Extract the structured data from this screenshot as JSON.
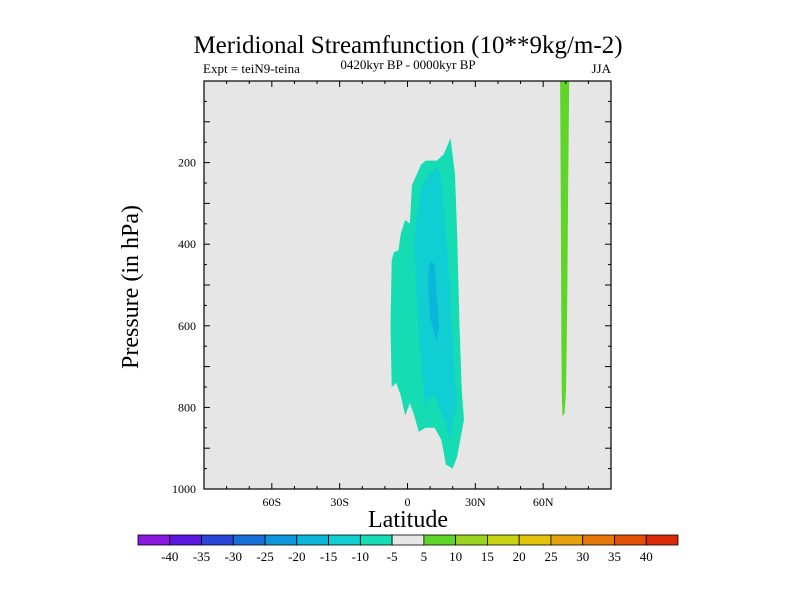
{
  "chart_data": {
    "type": "contour",
    "title": "Meridional Streamfunction (10**9kg/m-2)",
    "left_label": "Expt = teiN9-teina",
    "center_label": "0420kyr BP - 0000kyr BP",
    "right_label": "JJA",
    "xlabel": "Latitude",
    "ylabel": "Pressure (in hPa)",
    "xlim": [
      -90,
      90
    ],
    "ylim": [
      0,
      1000
    ],
    "x_ticks": [
      {
        "value": -60,
        "label": "60S"
      },
      {
        "value": -30,
        "label": "30S"
      },
      {
        "value": 0,
        "label": "0"
      },
      {
        "value": 30,
        "label": "30N"
      },
      {
        "value": 60,
        "label": "60N"
      }
    ],
    "y_ticks": [
      {
        "value": 200,
        "label": "200"
      },
      {
        "value": 400,
        "label": "400"
      },
      {
        "value": 600,
        "label": "600"
      },
      {
        "value": 800,
        "label": "800"
      },
      {
        "value": 1000,
        "label": "1000"
      }
    ],
    "x_minor_step": 10,
    "y_minor_step": 50,
    "background_color": "#e6e6e6",
    "colorbar": {
      "levels": [
        "-40",
        "-35",
        "-30",
        "-25",
        "-20",
        "-15",
        "-10",
        "-5",
        "5",
        "10",
        "15",
        "20",
        "25",
        "30",
        "35",
        "40"
      ],
      "colors": [
        "#8a18e0",
        "#5b16e0",
        "#2a45d8",
        "#1770d8",
        "#0c96dc",
        "#0ab6da",
        "#10ced2",
        "#16dcb4",
        "#e6e6e6",
        "#5fd52a",
        "#9ad41e",
        "#c8d412",
        "#e2c40a",
        "#e6a20a",
        "#e67808",
        "#e25006",
        "#dc2a06"
      ]
    },
    "regions": [
      {
        "name": "minus-5-to-minus-10",
        "color": "#16dcb4",
        "points": [
          [
            -7,
            440
          ],
          [
            -6,
            420
          ],
          [
            -4,
            415
          ],
          [
            -3,
            375
          ],
          [
            -1,
            340
          ],
          [
            1,
            350
          ],
          [
            2,
            255
          ],
          [
            6,
            205
          ],
          [
            8,
            195
          ],
          [
            13,
            195
          ],
          [
            16,
            180
          ],
          [
            19,
            140
          ],
          [
            21,
            230
          ],
          [
            22,
            380
          ],
          [
            23,
            600
          ],
          [
            24,
            760
          ],
          [
            25,
            830
          ],
          [
            22,
            920
          ],
          [
            20,
            950
          ],
          [
            17,
            940
          ],
          [
            15,
            880
          ],
          [
            12,
            850
          ],
          [
            8,
            850
          ],
          [
            5,
            860
          ],
          [
            3,
            820
          ],
          [
            1,
            790
          ],
          [
            -1,
            820
          ],
          [
            -3,
            770
          ],
          [
            -5,
            740
          ],
          [
            -7,
            750
          ],
          [
            -7.5,
            600
          ]
        ]
      },
      {
        "name": "minus-10-to-minus-15",
        "color": "#10ced2",
        "points": [
          [
            3,
            400
          ],
          [
            4,
            330
          ],
          [
            6,
            260
          ],
          [
            9,
            230
          ],
          [
            11,
            225
          ],
          [
            13,
            210
          ],
          [
            15,
            235
          ],
          [
            17,
            370
          ],
          [
            19,
            520
          ],
          [
            20,
            640
          ],
          [
            21,
            730
          ],
          [
            22,
            790
          ],
          [
            20,
            840
          ],
          [
            19,
            880
          ],
          [
            17,
            840
          ],
          [
            14,
            800
          ],
          [
            12,
            770
          ],
          [
            9,
            780
          ],
          [
            8,
            800
          ],
          [
            6,
            700
          ],
          [
            5,
            620
          ],
          [
            4,
            520
          ]
        ]
      },
      {
        "name": "minus-15-to-minus-20",
        "color": "#0ab6da",
        "points": [
          [
            9,
            480
          ],
          [
            10,
            440
          ],
          [
            12,
            450
          ],
          [
            13,
            530
          ],
          [
            14,
            600
          ],
          [
            13,
            640
          ],
          [
            12,
            620
          ],
          [
            10,
            580
          ]
        ]
      },
      {
        "name": "plus-5-to-plus-10",
        "color": "#5fd52a",
        "points": [
          [
            67.5,
            0
          ],
          [
            71.5,
            0
          ],
          [
            71,
            300
          ],
          [
            70.7,
            500
          ],
          [
            70.4,
            650
          ],
          [
            70.1,
            760
          ],
          [
            69.5,
            815
          ],
          [
            68.5,
            820
          ],
          [
            68.2,
            760
          ],
          [
            68,
            600
          ],
          [
            67.8,
            300
          ]
        ]
      }
    ]
  }
}
